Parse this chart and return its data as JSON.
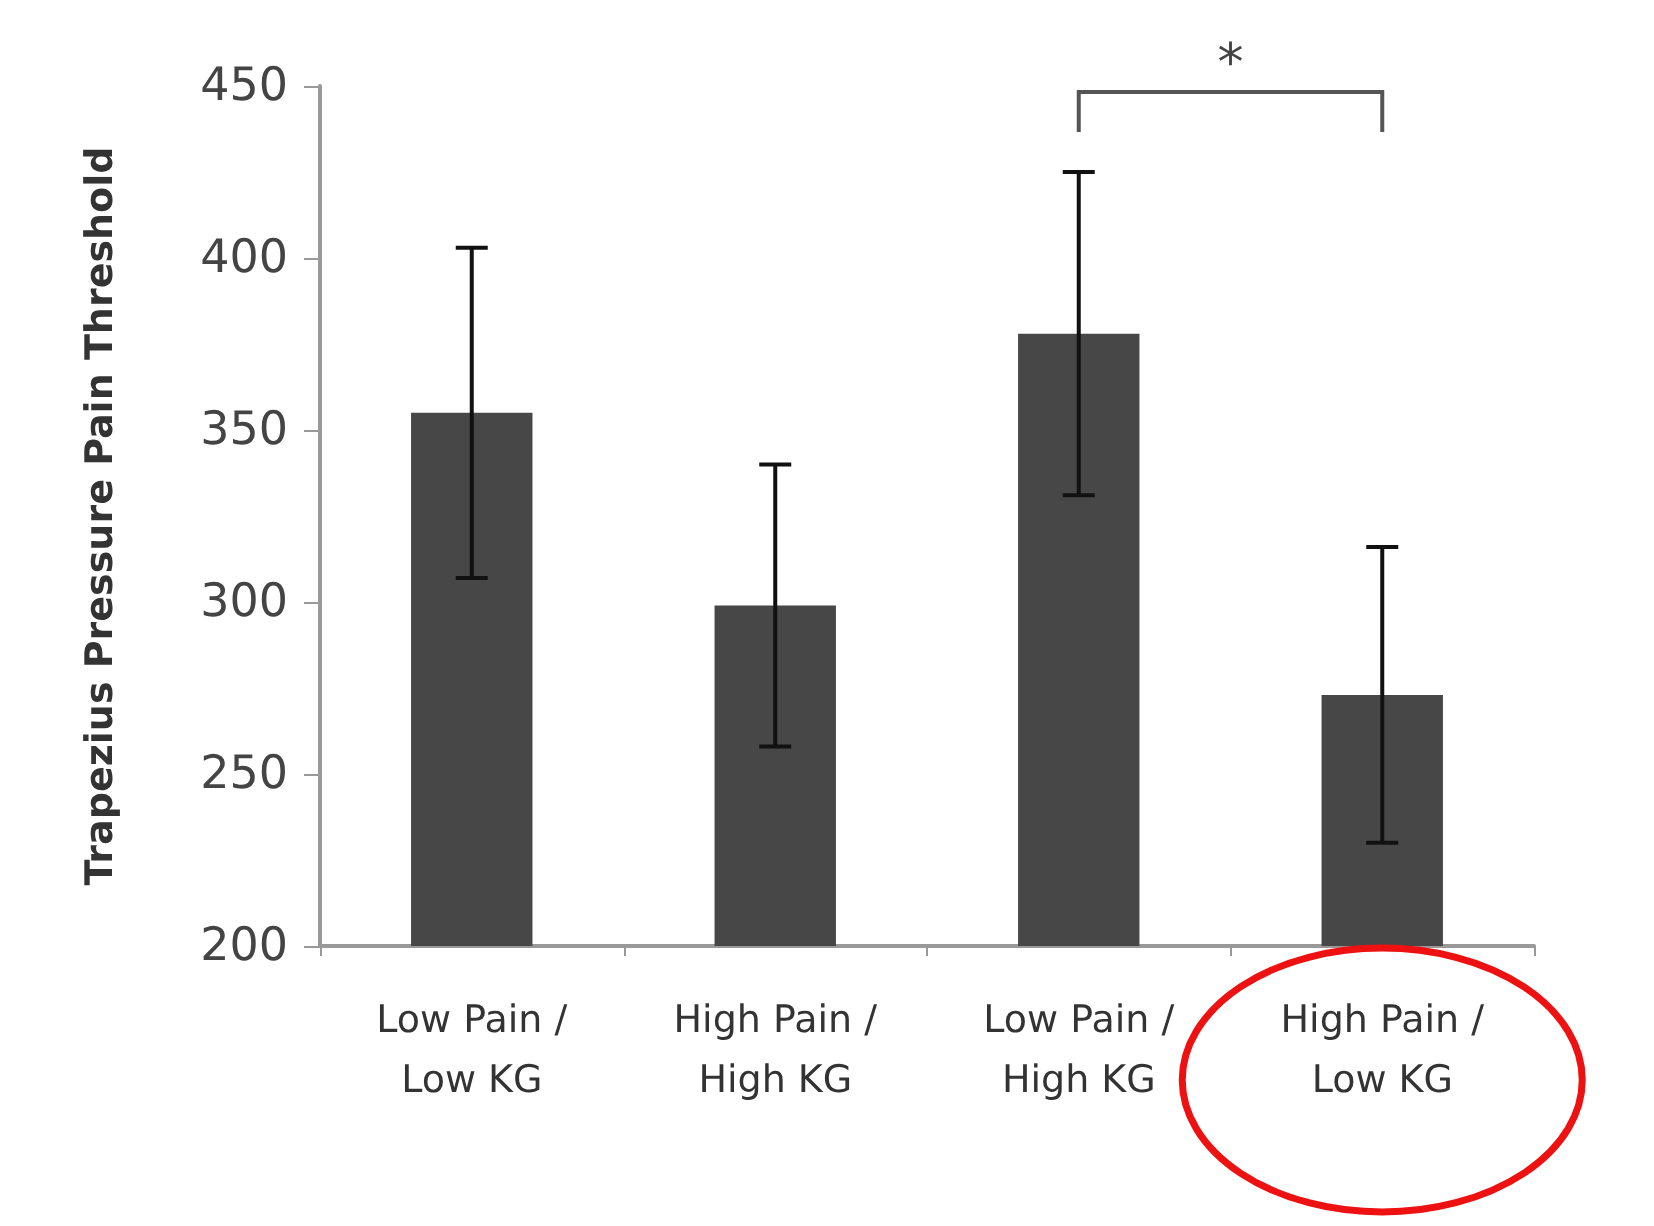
{
  "chart_data": {
    "type": "bar",
    "ylabel": "Trapezius Pressure Pain Threshold",
    "categories": [
      "Low Pain / Low KG",
      "High Pain / High KG",
      "Low Pain / High KG",
      "High Pain / Low KG"
    ],
    "values": [
      355,
      299,
      378,
      273
    ],
    "errors": [
      48,
      41,
      47,
      43
    ],
    "color": "#474747",
    "ylim": [
      200,
      450
    ],
    "yticks": [
      200,
      250,
      300,
      350,
      400,
      450
    ],
    "grid": false,
    "annotations": [
      "*"
    ]
  }
}
